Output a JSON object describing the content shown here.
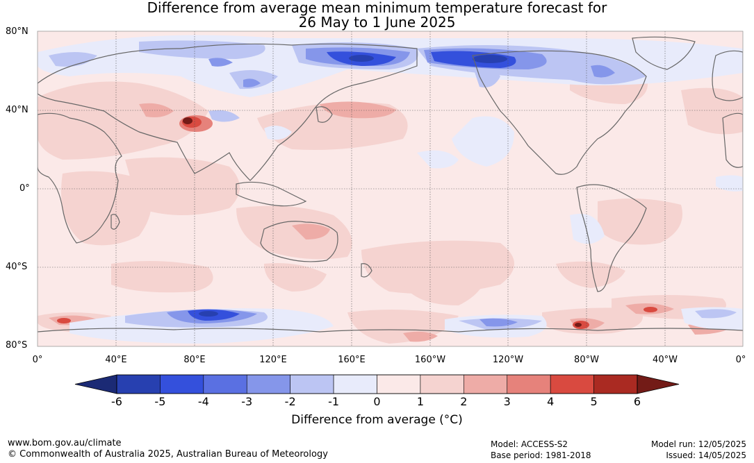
{
  "title": {
    "line1": "Difference from average mean minimum temperature forecast for",
    "line2": "26 May to 1 June 2025"
  },
  "map": {
    "lat_labels": [
      "80°N",
      "40°N",
      "0°",
      "40°S",
      "80°S"
    ],
    "lon_labels": [
      "0°",
      "40°E",
      "80°E",
      "120°E",
      "160°E",
      "160°W",
      "120°W",
      "80°W",
      "40°W",
      "0°"
    ],
    "anomaly_colors": {
      "below_-6": "#1b2a75",
      "-6_-5": "#2740b0",
      "-5_-4": "#3450dc",
      "-4_-3": "#5a70e2",
      "-3_-2": "#8596ea",
      "-2_-1": "#bcc5f3",
      "-1_0": "#e8ebfb",
      "0_1": "#fbe9e8",
      "1_2": "#f5d3d0",
      "2_3": "#eeaca7",
      "3_4": "#e6827b",
      "4_5": "#d94a40",
      "5_6": "#aa2a22",
      "above_6": "#731b17"
    },
    "land_outline_color": "#666666"
  },
  "colorbar": {
    "ticks": [
      "-6",
      "-5",
      "-4",
      "-3",
      "-2",
      "-1",
      "0",
      "1",
      "2",
      "3",
      "4",
      "5",
      "6"
    ],
    "label": "Difference from average (°C)"
  },
  "footer": {
    "website": "www.bom.gov.au/climate",
    "copyright": "© Commonwealth of Australia 2025, Australian Bureau of Meteorology",
    "model": "Model: ACCESS-S2",
    "base_period": "Base period: 1981-2018",
    "model_run": "Model run: 12/05/2025",
    "issued": "Issued: 14/05/2025"
  }
}
